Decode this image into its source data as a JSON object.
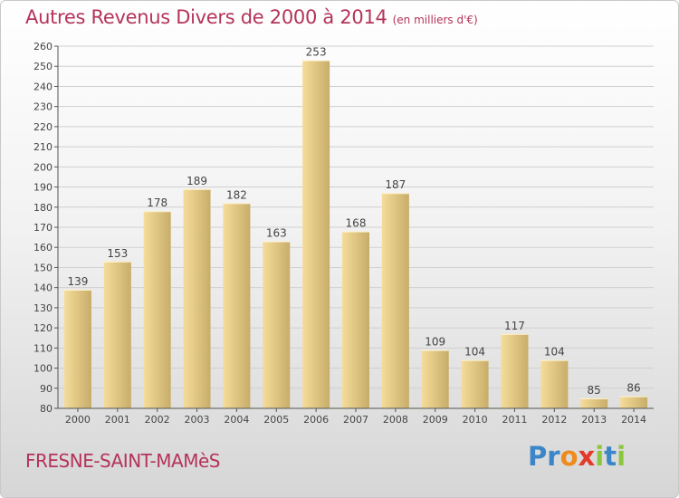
{
  "chart_data": {
    "type": "bar",
    "title": "Autres Revenus Divers de 2000 à 2014",
    "unit_label": "(en milliers d'€)",
    "categories": [
      "2000",
      "2001",
      "2002",
      "2003",
      "2004",
      "2005",
      "2006",
      "2007",
      "2008",
      "2009",
      "2010",
      "2011",
      "2012",
      "2013",
      "2014"
    ],
    "values": [
      139,
      153,
      178,
      189,
      182,
      163,
      253,
      168,
      187,
      109,
      104,
      117,
      104,
      85,
      86
    ],
    "ylim": [
      80,
      260
    ],
    "yticks": [
      80,
      90,
      100,
      110,
      120,
      130,
      140,
      150,
      160,
      170,
      180,
      190,
      200,
      210,
      220,
      230,
      240,
      250,
      260
    ],
    "grid": true,
    "data_labels": true,
    "colors": {
      "bar_light": "#f6dc9a",
      "bar_dark": "#c8ad6a",
      "grid": "#d0d0d0",
      "text": "#444444",
      "title": "#b5335a"
    }
  },
  "footer": {
    "commune": "FRESNE-SAINT-MAMèS",
    "logo_letters": [
      {
        "ch": "P",
        "color": "#3a86c8"
      },
      {
        "ch": "r",
        "color": "#3a86c8"
      },
      {
        "ch": "o",
        "color": "#f08a1c"
      },
      {
        "ch": "x",
        "color": "#e23a2a"
      },
      {
        "ch": "i",
        "color": "#8cc63e"
      },
      {
        "ch": "t",
        "color": "#3a86c8"
      },
      {
        "ch": "i",
        "color": "#8cc63e"
      }
    ]
  }
}
